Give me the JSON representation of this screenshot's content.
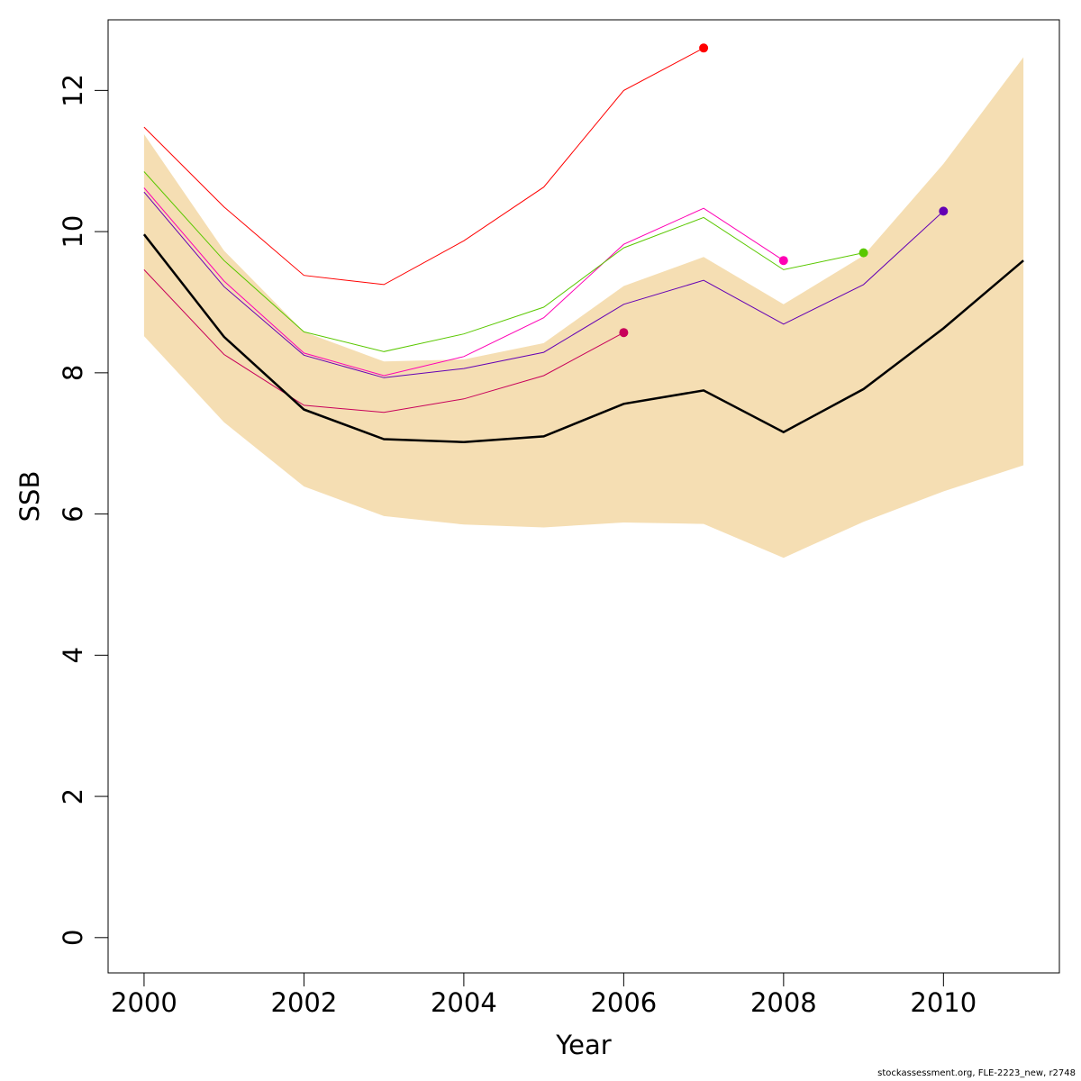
{
  "chart_data": {
    "type": "line",
    "title": "",
    "xlabel": "Year",
    "ylabel": "SSB",
    "xlim": [
      1999.55,
      2011.45
    ],
    "ylim": [
      -0.5,
      13.0
    ],
    "x_ticks": [
      2000,
      2002,
      2004,
      2006,
      2008,
      2010
    ],
    "x_tick_labels": [
      "2000",
      "2002",
      "2004",
      "2006",
      "2008",
      "2010"
    ],
    "y_ticks": [
      0,
      2,
      4,
      6,
      8,
      10,
      12
    ],
    "y_tick_labels": [
      "0",
      "2",
      "4",
      "6",
      "8",
      "10",
      "12"
    ],
    "grid": false,
    "legend": "none",
    "band": {
      "color": "#f5deb3",
      "x": [
        2000,
        2001,
        2002,
        2003,
        2004,
        2005,
        2006,
        2007,
        2008,
        2009,
        2010,
        2011
      ],
      "lower": [
        8.52,
        7.3,
        6.39,
        5.97,
        5.85,
        5.81,
        5.88,
        5.86,
        5.38,
        5.89,
        6.32,
        6.69
      ],
      "upper": [
        11.38,
        9.73,
        8.58,
        8.16,
        8.19,
        8.42,
        9.23,
        9.64,
        8.97,
        9.66,
        10.96,
        12.47
      ]
    },
    "main_series": {
      "color": "#000000",
      "x": [
        2000,
        2001,
        2002,
        2003,
        2004,
        2005,
        2006,
        2007,
        2008,
        2009,
        2010,
        2011
      ],
      "values": [
        9.96,
        8.51,
        7.48,
        7.06,
        7.02,
        7.1,
        7.56,
        7.75,
        7.16,
        7.77,
        8.63,
        9.59
      ]
    },
    "series": [
      {
        "color": "#ff0000",
        "x": [
          2000,
          2001,
          2002,
          2003,
          2004,
          2005,
          2006,
          2007
        ],
        "values": [
          11.48,
          10.35,
          9.38,
          9.25,
          9.87,
          10.63,
          12.0,
          12.6
        ]
      },
      {
        "color": "#ff00b4",
        "x": [
          2000,
          2001,
          2002,
          2003,
          2004,
          2005,
          2006,
          2007,
          2008
        ],
        "values": [
          10.62,
          9.3,
          8.28,
          7.96,
          8.23,
          8.78,
          9.82,
          10.33,
          9.59
        ]
      },
      {
        "color": "#5ac800",
        "x": [
          2000,
          2001,
          2002,
          2003,
          2004,
          2005,
          2006,
          2007,
          2008,
          2009
        ],
        "values": [
          10.85,
          9.59,
          8.58,
          8.3,
          8.55,
          8.93,
          9.77,
          10.2,
          9.46,
          9.7
        ]
      },
      {
        "color": "#6400b4",
        "x": [
          2000,
          2001,
          2002,
          2003,
          2004,
          2005,
          2006,
          2007,
          2008,
          2009,
          2010
        ],
        "values": [
          10.56,
          9.22,
          8.25,
          7.93,
          8.06,
          8.29,
          8.97,
          9.31,
          8.69,
          9.25,
          10.29
        ]
      },
      {
        "color": "#c8005a",
        "x": [
          2000,
          2001,
          2002,
          2003,
          2004,
          2005,
          2006
        ],
        "values": [
          9.46,
          8.26,
          7.54,
          7.44,
          7.63,
          7.96,
          8.57
        ]
      }
    ]
  },
  "footer": {
    "credit": "stockassessment.org, FLE-2223_new, r2748"
  }
}
